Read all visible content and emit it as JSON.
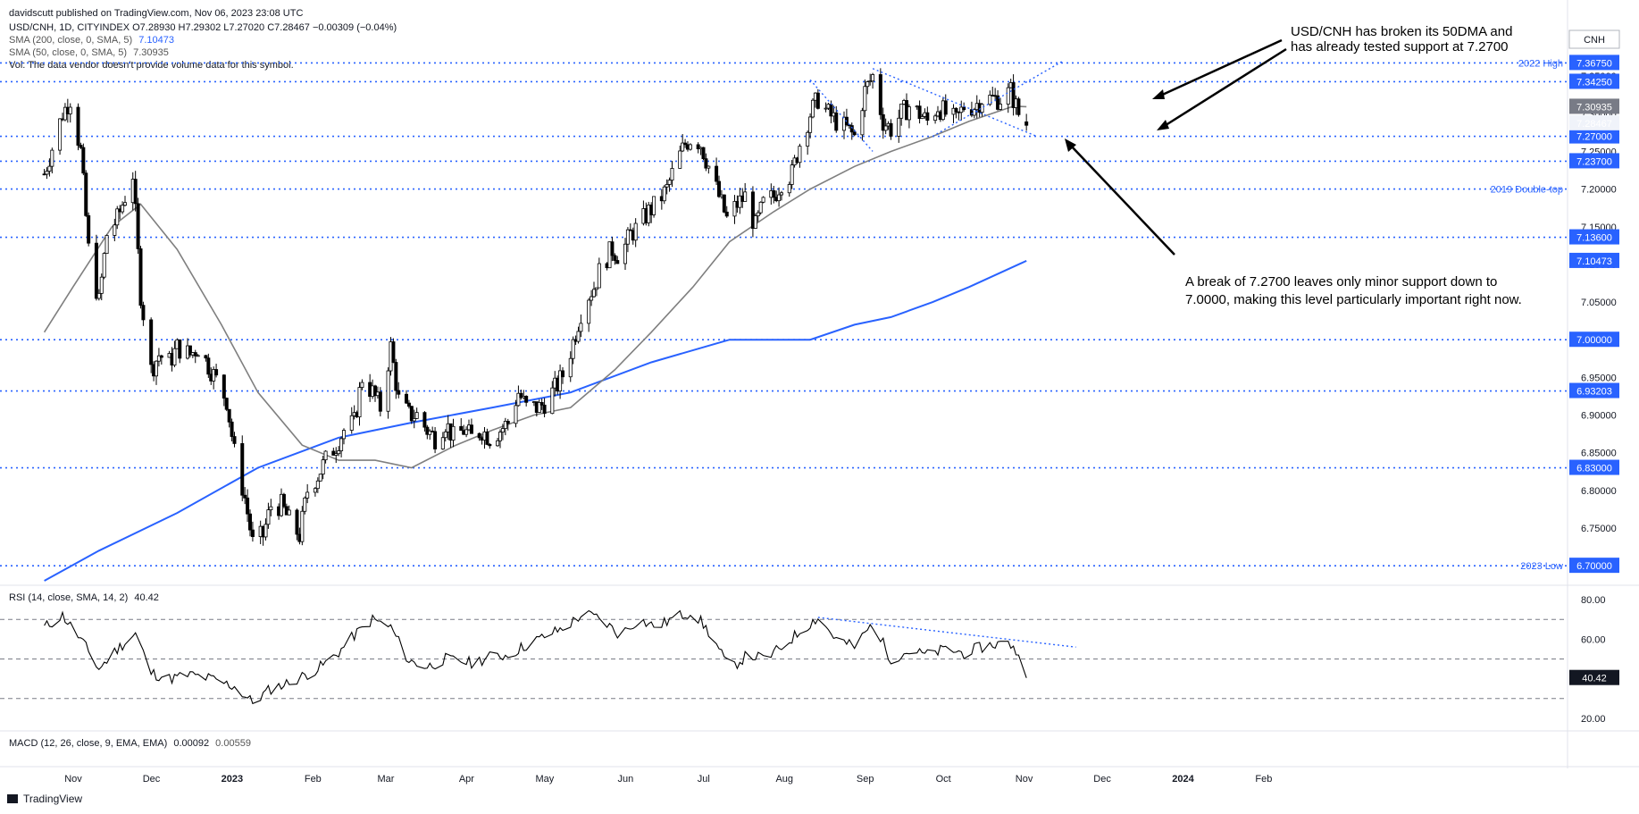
{
  "header": {
    "published": "davidscutt published on TradingView.com, Nov 06, 2023 23:08 UTC",
    "ohlc": "USD/CNH, 1D, CITYINDEX O7.28930 H7.29302 L7.27020 C7.28467 −0.00309 (−0.04%)",
    "sma200": "SMA (200, close, 0, SMA, 5)",
    "sma200_value": "7.10473",
    "sma50": "SMA (50, close, 0, SMA, 5)",
    "sma50_value": "7.30935",
    "vol": "Vol: The data vendor doesn't provide volume data for this symbol."
  },
  "currency_label": "CNH",
  "footer_logo": "TradingView",
  "annotations": {
    "top_line1": "USD/CNH has broken its 50DMA and",
    "top_line2": "has already tested support at 7.2700",
    "bottom_line1": "A break of 7.2700 leaves only minor support down to",
    "bottom_line2": "7.0000, making this level particularly important right now."
  },
  "colors": {
    "up": "#ffffff",
    "down": "#000000",
    "sma200": "#2962ff",
    "sma50": "#7f7f7f",
    "levels": "#2962ff",
    "rsi": "#000000"
  },
  "chart_data": [
    {
      "type": "candlestick",
      "symbol": "USD/CNH",
      "ylim": [
        6.68,
        7.4
      ],
      "y_ticks": [
        6.7,
        6.75,
        6.8,
        6.85,
        6.9,
        6.95,
        7.0,
        7.05,
        7.1,
        7.15,
        7.2,
        7.25,
        7.3,
        7.35
      ],
      "x_ticks": [
        "Nov",
        "Dec",
        "2023",
        "Feb",
        "Mar",
        "Apr",
        "May",
        "Jun",
        "Jul",
        "Aug",
        "Sep",
        "Oct",
        "Nov",
        "Dec",
        "2024",
        "Feb"
      ],
      "last": {
        "open": 7.2893,
        "high": 7.29302,
        "low": 7.2702,
        "close": 7.28467,
        "change": -0.00309,
        "change_pct": -0.04
      },
      "price_labels": {
        "last": "7.28467",
        "sma50": "7.30935",
        "sma200": "7.10473"
      },
      "levels": [
        {
          "value": 7.3675,
          "label": "7.36750",
          "note": "2022 High"
        },
        {
          "value": 7.3425,
          "label": "7.34250",
          "note": ""
        },
        {
          "value": 7.27,
          "label": "7.27000",
          "note": ""
        },
        {
          "value": 7.237,
          "label": "7.23700",
          "note": ""
        },
        {
          "value": 7.2,
          "label": "",
          "note": "2019 Double-top"
        },
        {
          "value": 7.136,
          "label": "7.13600",
          "note": ""
        },
        {
          "value": 7.0,
          "label": "7.00000",
          "note": ""
        },
        {
          "value": 6.93203,
          "label": "6.93203",
          "note": ""
        },
        {
          "value": 6.83,
          "label": "6.83000",
          "note": ""
        },
        {
          "value": 6.7,
          "label": "6.70000",
          "note": "2023 Low"
        }
      ],
      "close_path": [
        [
          "2022-10-25",
          7.22
        ],
        [
          "2022-11-01",
          7.3
        ],
        [
          "2022-11-04",
          7.32
        ],
        [
          "2022-11-08",
          7.25
        ],
        [
          "2022-11-11",
          7.12
        ],
        [
          "2022-11-15",
          7.05
        ],
        [
          "2022-11-18",
          7.14
        ],
        [
          "2022-11-22",
          7.16
        ],
        [
          "2022-11-25",
          7.19
        ],
        [
          "2022-11-28",
          7.22
        ],
        [
          "2022-12-01",
          7.06
        ],
        [
          "2022-12-05",
          6.96
        ],
        [
          "2022-12-08",
          6.98
        ],
        [
          "2022-12-12",
          6.97
        ],
        [
          "2022-12-15",
          6.99
        ],
        [
          "2022-12-20",
          6.98
        ],
        [
          "2022-12-23",
          6.99
        ],
        [
          "2022-12-28",
          6.96
        ],
        [
          "2023-01-03",
          6.92
        ],
        [
          "2023-01-06",
          6.85
        ],
        [
          "2023-01-10",
          6.79
        ],
        [
          "2023-01-13",
          6.73
        ],
        [
          "2023-01-17",
          6.74
        ],
        [
          "2023-01-20",
          6.78
        ],
        [
          "2023-01-24",
          6.78
        ],
        [
          "2023-01-27",
          6.76
        ],
        [
          "2023-01-31",
          6.74
        ],
        [
          "2023-02-03",
          6.8
        ],
        [
          "2023-02-07",
          6.82
        ],
        [
          "2023-02-10",
          6.84
        ],
        [
          "2023-02-14",
          6.86
        ],
        [
          "2023-02-17",
          6.88
        ],
        [
          "2023-02-21",
          6.89
        ],
        [
          "2023-02-24",
          6.95
        ],
        [
          "2023-02-28",
          6.93
        ],
        [
          "2023-03-03",
          6.91
        ],
        [
          "2023-03-07",
          6.99
        ],
        [
          "2023-03-10",
          6.92
        ],
        [
          "2023-03-14",
          6.9
        ],
        [
          "2023-03-17",
          6.9
        ],
        [
          "2023-03-21",
          6.88
        ],
        [
          "2023-03-24",
          6.87
        ],
        [
          "2023-03-28",
          6.89
        ],
        [
          "2023-03-31",
          6.87
        ],
        [
          "2023-04-04",
          6.88
        ],
        [
          "2023-04-07",
          6.87
        ],
        [
          "2023-04-11",
          6.88
        ],
        [
          "2023-04-14",
          6.87
        ],
        [
          "2023-04-18",
          6.88
        ],
        [
          "2023-04-21",
          6.89
        ],
        [
          "2023-04-25",
          6.93
        ],
        [
          "2023-04-28",
          6.91
        ],
        [
          "2023-05-03",
          6.91
        ],
        [
          "2023-05-06",
          6.92
        ],
        [
          "2023-05-10",
          6.94
        ],
        [
          "2023-05-13",
          6.96
        ],
        [
          "2023-05-17",
          7.01
        ],
        [
          "2023-05-20",
          7.05
        ],
        [
          "2023-05-24",
          7.07
        ],
        [
          "2023-05-27",
          7.1
        ],
        [
          "2023-05-31",
          7.12
        ],
        [
          "2023-06-03",
          7.11
        ],
        [
          "2023-06-07",
          7.14
        ],
        [
          "2023-06-10",
          7.15
        ],
        [
          "2023-06-14",
          7.17
        ],
        [
          "2023-06-17",
          7.18
        ],
        [
          "2023-06-21",
          7.2
        ],
        [
          "2023-06-24",
          7.23
        ],
        [
          "2023-06-28",
          7.26
        ],
        [
          "2023-07-01",
          7.27
        ],
        [
          "2023-07-04",
          7.26
        ],
        [
          "2023-07-07",
          7.23
        ],
        [
          "2023-07-11",
          7.19
        ],
        [
          "2023-07-14",
          7.16
        ],
        [
          "2023-07-18",
          7.18
        ],
        [
          "2023-07-21",
          7.19
        ],
        [
          "2023-07-25",
          7.15
        ],
        [
          "2023-07-28",
          7.18
        ],
        [
          "2023-08-01",
          7.19
        ],
        [
          "2023-08-04",
          7.21
        ],
        [
          "2023-08-08",
          7.22
        ],
        [
          "2023-08-11",
          7.26
        ],
        [
          "2023-08-15",
          7.3
        ],
        [
          "2023-08-18",
          7.32
        ],
        [
          "2023-08-22",
          7.3
        ],
        [
          "2023-08-25",
          7.29
        ],
        [
          "2023-08-29",
          7.28
        ],
        [
          "2023-09-01",
          7.27
        ],
        [
          "2023-09-05",
          7.33
        ],
        [
          "2023-09-08",
          7.35
        ],
        [
          "2023-09-12",
          7.29
        ],
        [
          "2023-09-15",
          7.28
        ],
        [
          "2023-09-19",
          7.3
        ],
        [
          "2023-09-22",
          7.31
        ],
        [
          "2023-09-26",
          7.3
        ],
        [
          "2023-09-29",
          7.29
        ],
        [
          "2023-10-03",
          7.31
        ],
        [
          "2023-10-06",
          7.3
        ],
        [
          "2023-10-10",
          7.29
        ],
        [
          "2023-10-13",
          7.31
        ],
        [
          "2023-10-17",
          7.31
        ],
        [
          "2023-10-20",
          7.32
        ],
        [
          "2023-10-24",
          7.32
        ],
        [
          "2023-10-27",
          7.32
        ],
        [
          "2023-10-31",
          7.33
        ],
        [
          "2023-11-03",
          7.3
        ],
        [
          "2023-11-06",
          7.28467
        ]
      ],
      "sma50": [
        [
          "2022-10-25",
          7.01
        ],
        [
          "2022-11-05",
          7.07
        ],
        [
          "2022-11-20",
          7.15
        ],
        [
          "2022-12-01",
          7.18
        ],
        [
          "2022-12-15",
          7.12
        ],
        [
          "2023-01-01",
          7.02
        ],
        [
          "2023-01-15",
          6.93
        ],
        [
          "2023-02-01",
          6.86
        ],
        [
          "2023-02-15",
          6.84
        ],
        [
          "2023-03-01",
          6.84
        ],
        [
          "2023-03-15",
          6.83
        ],
        [
          "2023-04-01",
          6.86
        ],
        [
          "2023-04-15",
          6.88
        ],
        [
          "2023-05-01",
          6.9
        ],
        [
          "2023-05-15",
          6.91
        ],
        [
          "2023-06-01",
          6.96
        ],
        [
          "2023-06-15",
          7.01
        ],
        [
          "2023-07-01",
          7.07
        ],
        [
          "2023-07-15",
          7.13
        ],
        [
          "2023-08-01",
          7.17
        ],
        [
          "2023-08-15",
          7.2
        ],
        [
          "2023-09-01",
          7.23
        ],
        [
          "2023-09-15",
          7.25
        ],
        [
          "2023-10-01",
          7.27
        ],
        [
          "2023-10-15",
          7.29
        ],
        [
          "2023-11-01",
          7.31
        ],
        [
          "2023-11-06",
          7.30935
        ]
      ],
      "sma200": [
        [
          "2022-10-25",
          6.68
        ],
        [
          "2022-11-15",
          6.72
        ],
        [
          "2022-12-15",
          6.77
        ],
        [
          "2023-01-15",
          6.83
        ],
        [
          "2023-02-15",
          6.87
        ],
        [
          "2023-03-15",
          6.89
        ],
        [
          "2023-04-15",
          6.91
        ],
        [
          "2023-05-15",
          6.93
        ],
        [
          "2023-06-15",
          6.97
        ],
        [
          "2023-07-15",
          7.0
        ],
        [
          "2023-08-01",
          7.0
        ],
        [
          "2023-08-15",
          7.0
        ],
        [
          "2023-09-01",
          7.02
        ],
        [
          "2023-09-15",
          7.03
        ],
        [
          "2023-10-01",
          7.05
        ],
        [
          "2023-10-15",
          7.07
        ],
        [
          "2023-11-06",
          7.10473
        ]
      ]
    },
    {
      "type": "line",
      "indicator": "RSI",
      "label": "RSI (14, close, SMA, 14, 2)",
      "value_label": "40.42",
      "ylim": [
        15,
        85
      ],
      "y_ticks": [
        20.0,
        40.0,
        60.0,
        80.0
      ],
      "bands": [
        70,
        50,
        30
      ],
      "values": [
        [
          "2022-10-25",
          66
        ],
        [
          "2022-11-01",
          72
        ],
        [
          "2022-11-08",
          60
        ],
        [
          "2022-11-15",
          45
        ],
        [
          "2022-11-22",
          55
        ],
        [
          "2022-11-29",
          63
        ],
        [
          "2022-12-05",
          43
        ],
        [
          "2022-12-12",
          40
        ],
        [
          "2022-12-20",
          42
        ],
        [
          "2022-12-28",
          40
        ],
        [
          "2023-01-06",
          36
        ],
        [
          "2023-01-13",
          28
        ],
        [
          "2023-01-20",
          35
        ],
        [
          "2023-01-27",
          38
        ],
        [
          "2023-02-07",
          45
        ],
        [
          "2023-02-14",
          52
        ],
        [
          "2023-02-21",
          62
        ],
        [
          "2023-02-28",
          70
        ],
        [
          "2023-03-07",
          66
        ],
        [
          "2023-03-14",
          49
        ],
        [
          "2023-03-21",
          46
        ],
        [
          "2023-03-28",
          50
        ],
        [
          "2023-04-07",
          48
        ],
        [
          "2023-04-14",
          51
        ],
        [
          "2023-04-21",
          52
        ],
        [
          "2023-04-28",
          57
        ],
        [
          "2023-05-06",
          62
        ],
        [
          "2023-05-13",
          66
        ],
        [
          "2023-05-20",
          73
        ],
        [
          "2023-05-27",
          70
        ],
        [
          "2023-06-03",
          62
        ],
        [
          "2023-06-10",
          70
        ],
        [
          "2023-06-17",
          66
        ],
        [
          "2023-06-24",
          71
        ],
        [
          "2023-07-01",
          74
        ],
        [
          "2023-07-08",
          62
        ],
        [
          "2023-07-15",
          45
        ],
        [
          "2023-07-22",
          52
        ],
        [
          "2023-07-29",
          50
        ],
        [
          "2023-08-05",
          57
        ],
        [
          "2023-08-12",
          65
        ],
        [
          "2023-08-18",
          71
        ],
        [
          "2023-08-25",
          60
        ],
        [
          "2023-09-01",
          56
        ],
        [
          "2023-09-08",
          68
        ],
        [
          "2023-09-15",
          50
        ],
        [
          "2023-09-22",
          54
        ],
        [
          "2023-09-29",
          52
        ],
        [
          "2023-10-06",
          55
        ],
        [
          "2023-10-13",
          53
        ],
        [
          "2023-10-20",
          56
        ],
        [
          "2023-10-27",
          58
        ],
        [
          "2023-11-01",
          57
        ],
        [
          "2023-11-06",
          40.42
        ]
      ]
    },
    {
      "type": "line",
      "indicator": "MACD",
      "label": "MACD (12, 26, close, 9, EMA, EMA)",
      "values_shown": [
        "0.00092",
        "0.00559"
      ]
    }
  ]
}
